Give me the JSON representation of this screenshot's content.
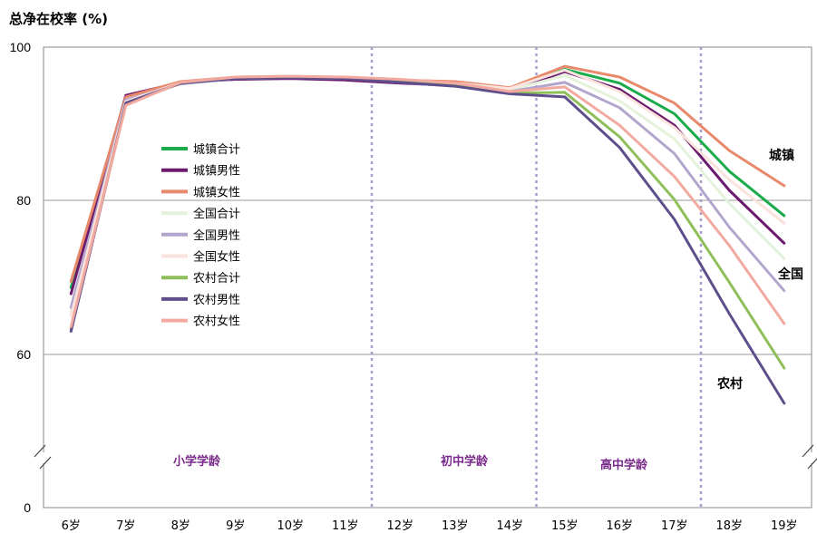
{
  "chart_data": {
    "type": "line",
    "ylabel": "总净在校率 (%)",
    "categories": [
      "6岁",
      "7岁",
      "8岁",
      "9岁",
      "10岁",
      "11岁",
      "12岁",
      "13岁",
      "14岁",
      "15岁",
      "16岁",
      "17岁",
      "18岁",
      "19岁"
    ],
    "y_ticks": [
      "100",
      "80",
      "60",
      "0"
    ],
    "axis_break": true,
    "grid": "horizontal at 80 and 60",
    "stage_labels": [
      "小学学龄",
      "初中学龄",
      "高中学龄"
    ],
    "stage_dividers_between": [
      [
        "11岁",
        "12岁"
      ],
      [
        "14岁",
        "15岁"
      ],
      [
        "17岁",
        "18岁"
      ]
    ],
    "group_labels": [
      "城镇",
      "全国",
      "农村"
    ],
    "legend_position": "upper-left inside plot",
    "series": [
      {
        "name": "城镇合计",
        "color": "#1aab4a",
        "width": 3,
        "values": [
          68.6,
          93.6,
          95.4,
          95.9,
          96.0,
          95.8,
          95.5,
          95.2,
          94.5,
          97.1,
          95.3,
          91.3,
          83.8,
          78.0
        ]
      },
      {
        "name": "城镇男性",
        "color": "#6b1a6e",
        "width": 3,
        "values": [
          67.8,
          93.7,
          95.4,
          95.8,
          95.9,
          95.7,
          95.3,
          95.0,
          94.3,
          96.8,
          94.5,
          89.8,
          81.3,
          74.4
        ]
      },
      {
        "name": "城镇女性",
        "color": "#e8896b",
        "width": 3,
        "values": [
          69.4,
          93.5,
          95.5,
          96.1,
          96.2,
          96.0,
          95.7,
          95.5,
          94.7,
          97.5,
          96.1,
          92.7,
          86.5,
          81.9
        ]
      },
      {
        "name": "全国合计",
        "color": "#e4f2dc",
        "width": 3,
        "values": [
          65.4,
          93.0,
          95.3,
          96.0,
          96.1,
          96.0,
          95.6,
          95.1,
          94.4,
          96.3,
          93.0,
          88.0,
          79.6,
          72.4
        ]
      },
      {
        "name": "全国男性",
        "color": "#b3a6cd",
        "width": 3,
        "values": [
          66.0,
          93.1,
          95.2,
          95.9,
          96.0,
          95.9,
          95.4,
          94.9,
          94.2,
          95.4,
          92.1,
          86.1,
          76.5,
          68.2
        ]
      },
      {
        "name": "全国女性",
        "color": "#fae3dd",
        "width": 3,
        "values": [
          64.9,
          92.9,
          95.4,
          96.1,
          96.2,
          96.1,
          95.8,
          95.3,
          94.6,
          97.0,
          94.2,
          89.5,
          82.7,
          77.0
        ]
      },
      {
        "name": "农村合计",
        "color": "#8fbf5a",
        "width": 3,
        "values": [
          63.2,
          92.6,
          95.3,
          96.0,
          96.1,
          96.0,
          95.6,
          95.1,
          94.0,
          94.1,
          88.3,
          80.1,
          69.3,
          58.1
        ]
      },
      {
        "name": "农村男性",
        "color": "#5e4f8c",
        "width": 3,
        "values": [
          62.9,
          92.7,
          95.3,
          95.9,
          96.0,
          95.9,
          95.4,
          94.9,
          93.9,
          93.5,
          86.9,
          77.5,
          65.2,
          53.5
        ]
      },
      {
        "name": "农村女性",
        "color": "#f2aaa0",
        "width": 3,
        "values": [
          63.5,
          92.4,
          95.4,
          96.1,
          96.2,
          96.1,
          95.8,
          95.3,
          94.2,
          94.8,
          89.8,
          83.1,
          74.1,
          63.9
        ]
      }
    ]
  }
}
